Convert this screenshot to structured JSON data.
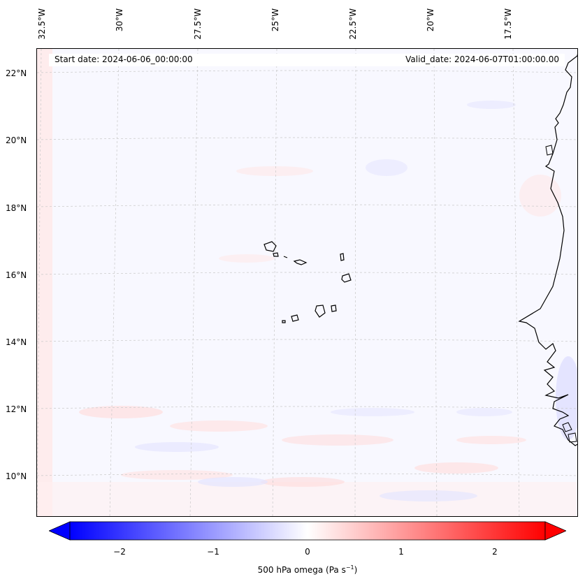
{
  "map": {
    "lon_labels": [
      "32.5°W",
      "30°W",
      "27.5°W",
      "25°W",
      "22.5°W",
      "20°W",
      "17.5°W"
    ],
    "lat_labels": [
      "22°N",
      "20°N",
      "18°N",
      "16°N",
      "14°N",
      "12°N",
      "10°N"
    ],
    "start_date": "Start date: 2024-06-06_00:00:00",
    "valid_date": "Valid_date: 2024-06-07T01:00:00.00",
    "field": "500 hPa omega",
    "colormap": "bwr",
    "colors": {
      "negative": "#0000ff",
      "zero": "#ffffff",
      "positive": "#ff0000",
      "coastline": "#000000",
      "grid": "#c8c8c8"
    }
  },
  "colorbar": {
    "ticks": [
      "−2",
      "−1",
      "0",
      "1",
      "2"
    ],
    "label_main": "500 hPa omega (Pa s",
    "label_sup": "−1",
    "label_end": ")",
    "range": [
      -2.6,
      2.6
    ],
    "extend": "both"
  }
}
